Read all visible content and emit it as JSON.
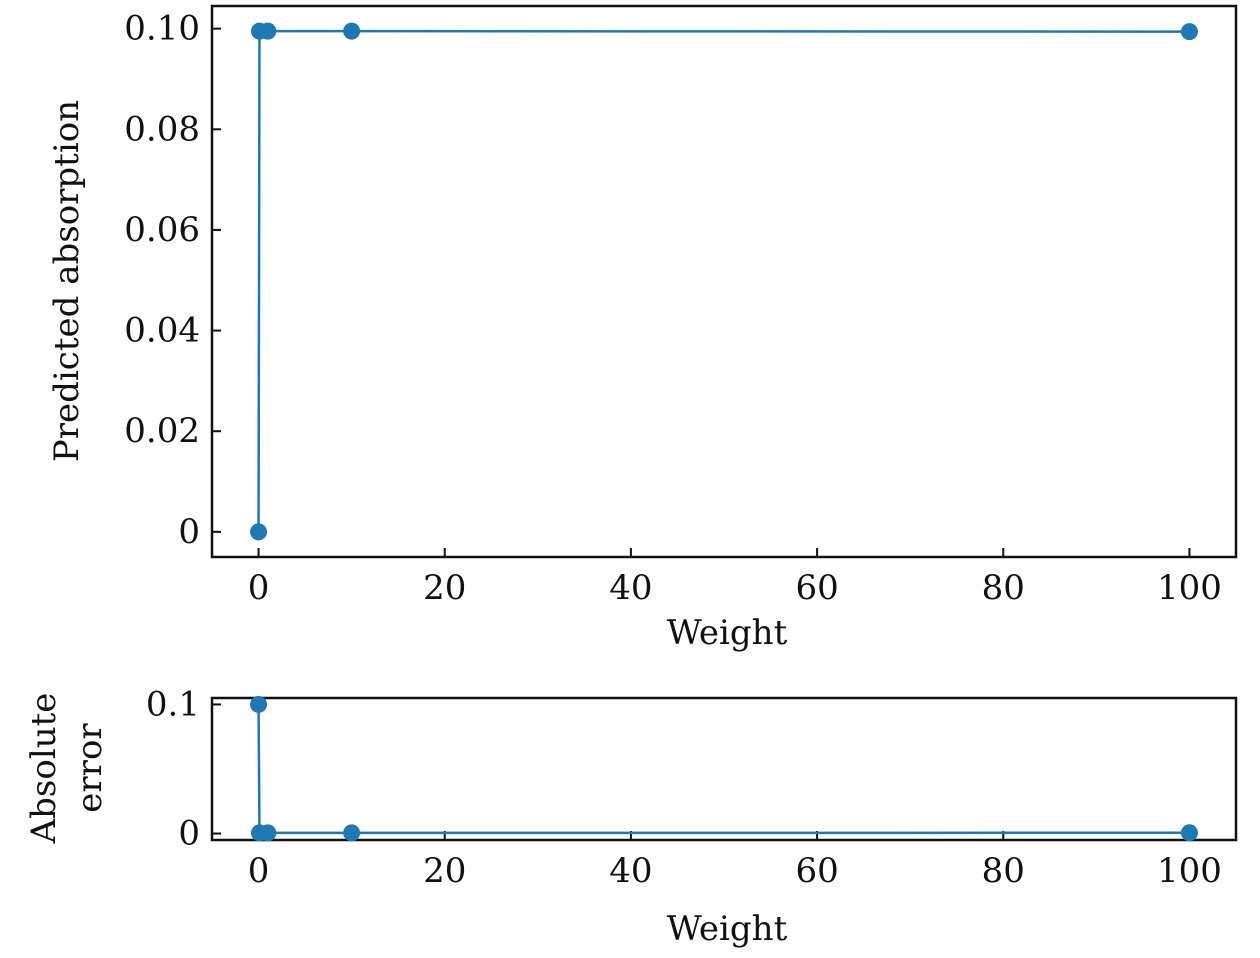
{
  "chart_data": [
    {
      "type": "line",
      "xlabel": "Weight",
      "ylabel": "Predicted absorption",
      "xlim": [
        -5,
        105
      ],
      "ylim": [
        -0.005,
        0.1045
      ],
      "xticks": [
        0,
        20,
        40,
        60,
        80,
        100
      ],
      "xtick_labels": [
        "0",
        "20",
        "40",
        "60",
        "80",
        "100"
      ],
      "yticks": [
        0,
        0.02,
        0.04,
        0.06,
        0.08,
        0.1
      ],
      "ytick_labels": [
        "0",
        "0.02",
        "0.04",
        "0.06",
        "0.08",
        "0.10"
      ],
      "grid": false,
      "color": "#1f77b4",
      "series": [
        {
          "x": [
            0,
            0.1,
            1,
            10,
            100
          ],
          "y": [
            0,
            0.0995,
            0.0995,
            0.0995,
            0.0994
          ]
        }
      ]
    },
    {
      "type": "line",
      "xlabel": "Weight",
      "ylabel": "Absolute\nerror",
      "ylabel_lines": [
        "Absolute",
        "error"
      ],
      "xlim": [
        -5,
        105
      ],
      "ylim": [
        -0.005,
        0.105
      ],
      "xticks": [
        0,
        20,
        40,
        60,
        80,
        100
      ],
      "xtick_labels": [
        "0",
        "20",
        "40",
        "60",
        "80",
        "100"
      ],
      "yticks": [
        0,
        0.1
      ],
      "ytick_labels": [
        "0",
        "0.1"
      ],
      "grid": false,
      "color": "#1f77b4",
      "series": [
        {
          "x": [
            0,
            0.1,
            1,
            10,
            100
          ],
          "y": [
            0.1,
            0.0005,
            0.0005,
            0.0005,
            0.0006
          ]
        }
      ]
    }
  ]
}
